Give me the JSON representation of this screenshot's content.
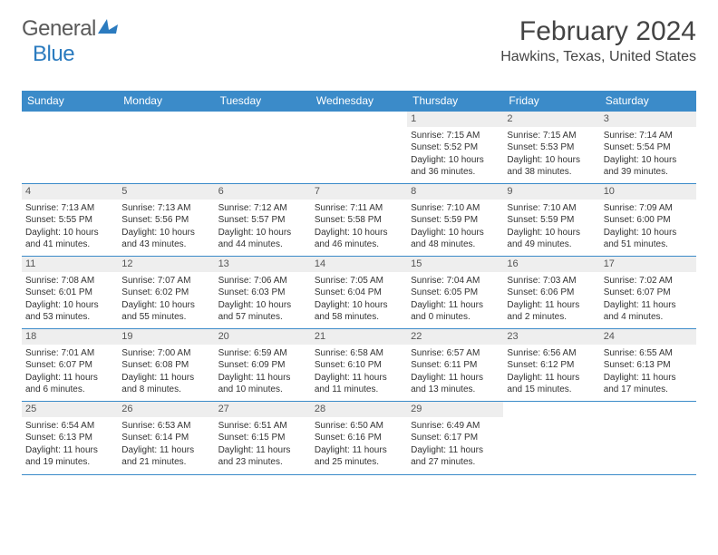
{
  "logo": {
    "general": "General",
    "blue": "Blue"
  },
  "title": "February 2024",
  "location": "Hawkins, Texas, United States",
  "colors": {
    "header_bg": "#3b8bc9",
    "header_text": "#ffffff",
    "border": "#3b8bc9",
    "daynum_bg": "#eeeeee",
    "text": "#333333",
    "title_color": "#444444",
    "logo_gray": "#5a5a5a",
    "logo_blue": "#2b7bbf"
  },
  "typography": {
    "title_fontsize": 30,
    "location_fontsize": 16,
    "header_fontsize": 12,
    "daynum_fontsize": 11,
    "body_fontsize": 10
  },
  "day_headers": [
    "Sunday",
    "Monday",
    "Tuesday",
    "Wednesday",
    "Thursday",
    "Friday",
    "Saturday"
  ],
  "weeks": [
    [
      {
        "empty": true
      },
      {
        "empty": true
      },
      {
        "empty": true
      },
      {
        "empty": true
      },
      {
        "num": "1",
        "sunrise": "Sunrise: 7:15 AM",
        "sunset": "Sunset: 5:52 PM",
        "daylight": "Daylight: 10 hours and 36 minutes."
      },
      {
        "num": "2",
        "sunrise": "Sunrise: 7:15 AM",
        "sunset": "Sunset: 5:53 PM",
        "daylight": "Daylight: 10 hours and 38 minutes."
      },
      {
        "num": "3",
        "sunrise": "Sunrise: 7:14 AM",
        "sunset": "Sunset: 5:54 PM",
        "daylight": "Daylight: 10 hours and 39 minutes."
      }
    ],
    [
      {
        "num": "4",
        "sunrise": "Sunrise: 7:13 AM",
        "sunset": "Sunset: 5:55 PM",
        "daylight": "Daylight: 10 hours and 41 minutes."
      },
      {
        "num": "5",
        "sunrise": "Sunrise: 7:13 AM",
        "sunset": "Sunset: 5:56 PM",
        "daylight": "Daylight: 10 hours and 43 minutes."
      },
      {
        "num": "6",
        "sunrise": "Sunrise: 7:12 AM",
        "sunset": "Sunset: 5:57 PM",
        "daylight": "Daylight: 10 hours and 44 minutes."
      },
      {
        "num": "7",
        "sunrise": "Sunrise: 7:11 AM",
        "sunset": "Sunset: 5:58 PM",
        "daylight": "Daylight: 10 hours and 46 minutes."
      },
      {
        "num": "8",
        "sunrise": "Sunrise: 7:10 AM",
        "sunset": "Sunset: 5:59 PM",
        "daylight": "Daylight: 10 hours and 48 minutes."
      },
      {
        "num": "9",
        "sunrise": "Sunrise: 7:10 AM",
        "sunset": "Sunset: 5:59 PM",
        "daylight": "Daylight: 10 hours and 49 minutes."
      },
      {
        "num": "10",
        "sunrise": "Sunrise: 7:09 AM",
        "sunset": "Sunset: 6:00 PM",
        "daylight": "Daylight: 10 hours and 51 minutes."
      }
    ],
    [
      {
        "num": "11",
        "sunrise": "Sunrise: 7:08 AM",
        "sunset": "Sunset: 6:01 PM",
        "daylight": "Daylight: 10 hours and 53 minutes."
      },
      {
        "num": "12",
        "sunrise": "Sunrise: 7:07 AM",
        "sunset": "Sunset: 6:02 PM",
        "daylight": "Daylight: 10 hours and 55 minutes."
      },
      {
        "num": "13",
        "sunrise": "Sunrise: 7:06 AM",
        "sunset": "Sunset: 6:03 PM",
        "daylight": "Daylight: 10 hours and 57 minutes."
      },
      {
        "num": "14",
        "sunrise": "Sunrise: 7:05 AM",
        "sunset": "Sunset: 6:04 PM",
        "daylight": "Daylight: 10 hours and 58 minutes."
      },
      {
        "num": "15",
        "sunrise": "Sunrise: 7:04 AM",
        "sunset": "Sunset: 6:05 PM",
        "daylight": "Daylight: 11 hours and 0 minutes."
      },
      {
        "num": "16",
        "sunrise": "Sunrise: 7:03 AM",
        "sunset": "Sunset: 6:06 PM",
        "daylight": "Daylight: 11 hours and 2 minutes."
      },
      {
        "num": "17",
        "sunrise": "Sunrise: 7:02 AM",
        "sunset": "Sunset: 6:07 PM",
        "daylight": "Daylight: 11 hours and 4 minutes."
      }
    ],
    [
      {
        "num": "18",
        "sunrise": "Sunrise: 7:01 AM",
        "sunset": "Sunset: 6:07 PM",
        "daylight": "Daylight: 11 hours and 6 minutes."
      },
      {
        "num": "19",
        "sunrise": "Sunrise: 7:00 AM",
        "sunset": "Sunset: 6:08 PM",
        "daylight": "Daylight: 11 hours and 8 minutes."
      },
      {
        "num": "20",
        "sunrise": "Sunrise: 6:59 AM",
        "sunset": "Sunset: 6:09 PM",
        "daylight": "Daylight: 11 hours and 10 minutes."
      },
      {
        "num": "21",
        "sunrise": "Sunrise: 6:58 AM",
        "sunset": "Sunset: 6:10 PM",
        "daylight": "Daylight: 11 hours and 11 minutes."
      },
      {
        "num": "22",
        "sunrise": "Sunrise: 6:57 AM",
        "sunset": "Sunset: 6:11 PM",
        "daylight": "Daylight: 11 hours and 13 minutes."
      },
      {
        "num": "23",
        "sunrise": "Sunrise: 6:56 AM",
        "sunset": "Sunset: 6:12 PM",
        "daylight": "Daylight: 11 hours and 15 minutes."
      },
      {
        "num": "24",
        "sunrise": "Sunrise: 6:55 AM",
        "sunset": "Sunset: 6:13 PM",
        "daylight": "Daylight: 11 hours and 17 minutes."
      }
    ],
    [
      {
        "num": "25",
        "sunrise": "Sunrise: 6:54 AM",
        "sunset": "Sunset: 6:13 PM",
        "daylight": "Daylight: 11 hours and 19 minutes."
      },
      {
        "num": "26",
        "sunrise": "Sunrise: 6:53 AM",
        "sunset": "Sunset: 6:14 PM",
        "daylight": "Daylight: 11 hours and 21 minutes."
      },
      {
        "num": "27",
        "sunrise": "Sunrise: 6:51 AM",
        "sunset": "Sunset: 6:15 PM",
        "daylight": "Daylight: 11 hours and 23 minutes."
      },
      {
        "num": "28",
        "sunrise": "Sunrise: 6:50 AM",
        "sunset": "Sunset: 6:16 PM",
        "daylight": "Daylight: 11 hours and 25 minutes."
      },
      {
        "num": "29",
        "sunrise": "Sunrise: 6:49 AM",
        "sunset": "Sunset: 6:17 PM",
        "daylight": "Daylight: 11 hours and 27 minutes."
      },
      {
        "empty": true
      },
      {
        "empty": true
      }
    ]
  ]
}
